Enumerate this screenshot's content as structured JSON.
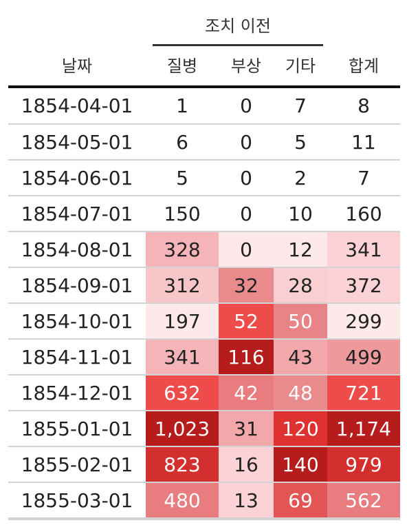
{
  "spanner": {
    "label": "조치 이전"
  },
  "columns": {
    "date": "날짜",
    "disease": "질병",
    "wounds": "부상",
    "other": "기타",
    "total": "합계"
  },
  "rows": [
    {
      "date": "1854-04-01",
      "disease": "1",
      "wounds": "0",
      "other": "7",
      "total": "8",
      "fill": [
        "",
        "",
        "",
        ""
      ],
      "ink": [
        "#222222",
        "#222222",
        "#222222",
        "#222222"
      ]
    },
    {
      "date": "1854-05-01",
      "disease": "6",
      "wounds": "0",
      "other": "5",
      "total": "11",
      "fill": [
        "",
        "",
        "",
        ""
      ],
      "ink": [
        "#222222",
        "#222222",
        "#222222",
        "#222222"
      ]
    },
    {
      "date": "1854-06-01",
      "disease": "5",
      "wounds": "0",
      "other": "2",
      "total": "7",
      "fill": [
        "",
        "",
        "",
        ""
      ],
      "ink": [
        "#222222",
        "#222222",
        "#222222",
        "#222222"
      ]
    },
    {
      "date": "1854-07-01",
      "disease": "150",
      "wounds": "0",
      "other": "10",
      "total": "160",
      "fill": [
        "",
        "",
        "",
        ""
      ],
      "ink": [
        "#222222",
        "#222222",
        "#222222",
        "#222222"
      ]
    },
    {
      "date": "1854-08-01",
      "disease": "328",
      "wounds": "0",
      "other": "12",
      "total": "341",
      "fill": [
        "#f5b5b8",
        "#fde8ea",
        "#fde8ea",
        "#fbd3d6"
      ],
      "ink": [
        "#222222",
        "#222222",
        "#222222",
        "#222222"
      ]
    },
    {
      "date": "1854-09-01",
      "disease": "312",
      "wounds": "32",
      "other": "28",
      "total": "372",
      "fill": [
        "#f7c6c9",
        "#e98a8d",
        "#f9cfd2",
        "#fbd3d6"
      ],
      "ink": [
        "#222222",
        "#222222",
        "#222222",
        "#222222"
      ]
    },
    {
      "date": "1854-10-01",
      "disease": "197",
      "wounds": "52",
      "other": "50",
      "total": "299",
      "fill": [
        "#fde8ea",
        "#ee4b4b",
        "#e88487",
        "#fde8ea"
      ],
      "ink": [
        "#222222",
        "#ffffff",
        "#ffffff",
        "#222222"
      ]
    },
    {
      "date": "1854-11-01",
      "disease": "341",
      "wounds": "116",
      "other": "43",
      "total": "499",
      "fill": [
        "#f5b5b8",
        "#b71c1c",
        "#f2a7aa",
        "#ee9a9d"
      ],
      "ink": [
        "#222222",
        "#ffffff",
        "#222222",
        "#222222"
      ]
    },
    {
      "date": "1854-12-01",
      "disease": "632",
      "wounds": "42",
      "other": "48",
      "total": "721",
      "fill": [
        "#ee4b4b",
        "#e87c7f",
        "#e98a8d",
        "#ee4b4b"
      ],
      "ink": [
        "#ffffff",
        "#ffffff",
        "#ffffff",
        "#ffffff"
      ]
    },
    {
      "date": "1855-01-01",
      "disease": "1,023",
      "wounds": "31",
      "other": "120",
      "total": "1,174",
      "fill": [
        "#b71c1c",
        "#f2a7aa",
        "#e03131",
        "#b71c1c"
      ],
      "ink": [
        "#ffffff",
        "#222222",
        "#ffffff",
        "#ffffff"
      ]
    },
    {
      "date": "1855-02-01",
      "disease": "823",
      "wounds": "16",
      "other": "140",
      "total": "979",
      "fill": [
        "#d32f2f",
        "#fbd3d6",
        "#b71c1c",
        "#d32f2f"
      ],
      "ink": [
        "#ffffff",
        "#222222",
        "#ffffff",
        "#ffffff"
      ]
    },
    {
      "date": "1855-03-01",
      "disease": "480",
      "wounds": "13",
      "other": "69",
      "total": "562",
      "fill": [
        "#e87c7f",
        "#fbd3d6",
        "#e35454",
        "#e87c7f"
      ],
      "ink": [
        "#ffffff",
        "#222222",
        "#ffffff",
        "#ffffff"
      ]
    }
  ]
}
